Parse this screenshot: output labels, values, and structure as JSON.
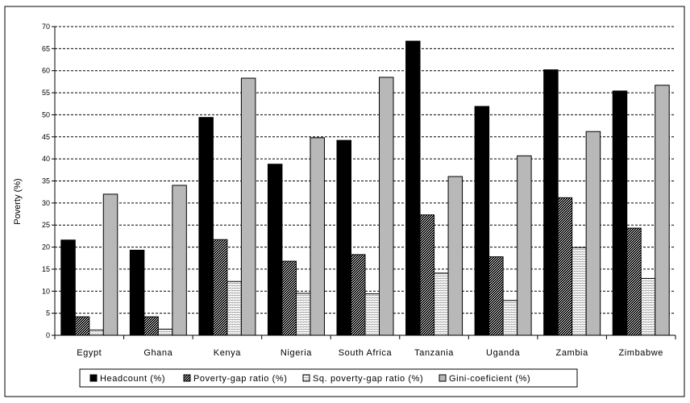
{
  "chart_data": {
    "type": "bar",
    "ylabel": "Poverty (%)",
    "xlabel": "",
    "ylim": [
      0,
      70
    ],
    "yticks": [
      0,
      5,
      10,
      15,
      20,
      25,
      30,
      35,
      40,
      45,
      50,
      55,
      60,
      65,
      70
    ],
    "grid": "horizontal dashed",
    "legend_position": "bottom",
    "categories": [
      "Egypt",
      "Ghana",
      "Kenya",
      "Nigeria",
      "South Africa",
      "Tanzania",
      "Uganda",
      "Zambia",
      "Zimbabwe"
    ],
    "series": [
      {
        "name": "Headcount (%)",
        "pattern": "solid-black",
        "values": [
          21.6,
          19.3,
          49.4,
          38.8,
          44.2,
          66.7,
          51.9,
          60.2,
          55.4
        ]
      },
      {
        "name": "Poverty-gap ratio (%)",
        "pattern": "dark-crosshatch",
        "values": [
          4.2,
          4.2,
          21.7,
          16.8,
          18.3,
          27.3,
          17.8,
          31.2,
          24.3
        ]
      },
      {
        "name": "Sq. poverty-gap ratio (%)",
        "pattern": "light-horizontal",
        "values": [
          1.2,
          1.4,
          12.2,
          9.5,
          9.4,
          14.1,
          7.9,
          19.9,
          12.9
        ]
      },
      {
        "name": "Gini-coeficient (%)",
        "pattern": "light-gray",
        "values": [
          32.0,
          34.0,
          58.3,
          44.8,
          58.5,
          36.0,
          40.7,
          46.2,
          56.7
        ]
      }
    ]
  }
}
